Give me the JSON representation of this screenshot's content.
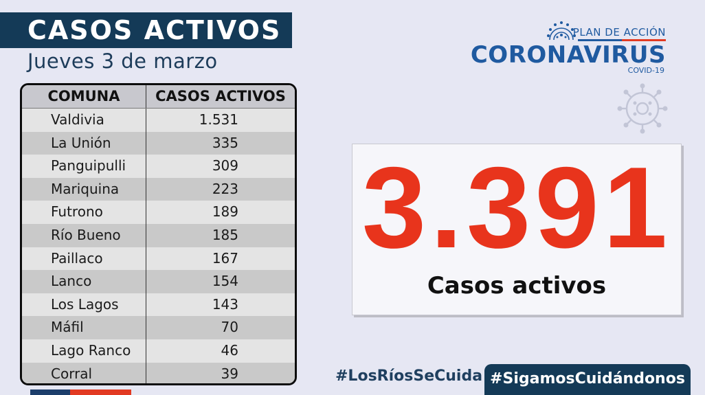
{
  "header": {
    "title": "CASOS ACTIVOS",
    "date": "Jueves 3 de marzo"
  },
  "table": {
    "columns": [
      "COMUNA",
      "CASOS ACTIVOS"
    ],
    "rows": [
      {
        "comuna": "Valdivia",
        "casos": "1.531"
      },
      {
        "comuna": "La Unión",
        "casos": "335"
      },
      {
        "comuna": "Panguipulli",
        "casos": "309"
      },
      {
        "comuna": "Mariquina",
        "casos": "223"
      },
      {
        "comuna": "Futrono",
        "casos": "189"
      },
      {
        "comuna": "Río Bueno",
        "casos": "185"
      },
      {
        "comuna": "Paillaco",
        "casos": "167"
      },
      {
        "comuna": "Lanco",
        "casos": "154"
      },
      {
        "comuna": "Los Lagos",
        "casos": "143"
      },
      {
        "comuna": "Máfil",
        "casos": "70"
      },
      {
        "comuna": "Lago Ranco",
        "casos": "46"
      },
      {
        "comuna": "Corral",
        "casos": "39"
      }
    ]
  },
  "logo": {
    "top": "PLAN DE ACCIÓN",
    "main": "CORONAVIRUS",
    "sub": "COVID-19",
    "icon": "coronavirus-icon"
  },
  "total": {
    "number": "3.391",
    "label": "Casos activos"
  },
  "hashtags": {
    "first": "#LosRíosSeCuida",
    "second": "#SigamosCuidándonos"
  },
  "colors": {
    "navy": "#143a57",
    "accent_red": "#e8341c",
    "brand_blue": "#1f5aa0",
    "background": "#e6e7f3"
  }
}
